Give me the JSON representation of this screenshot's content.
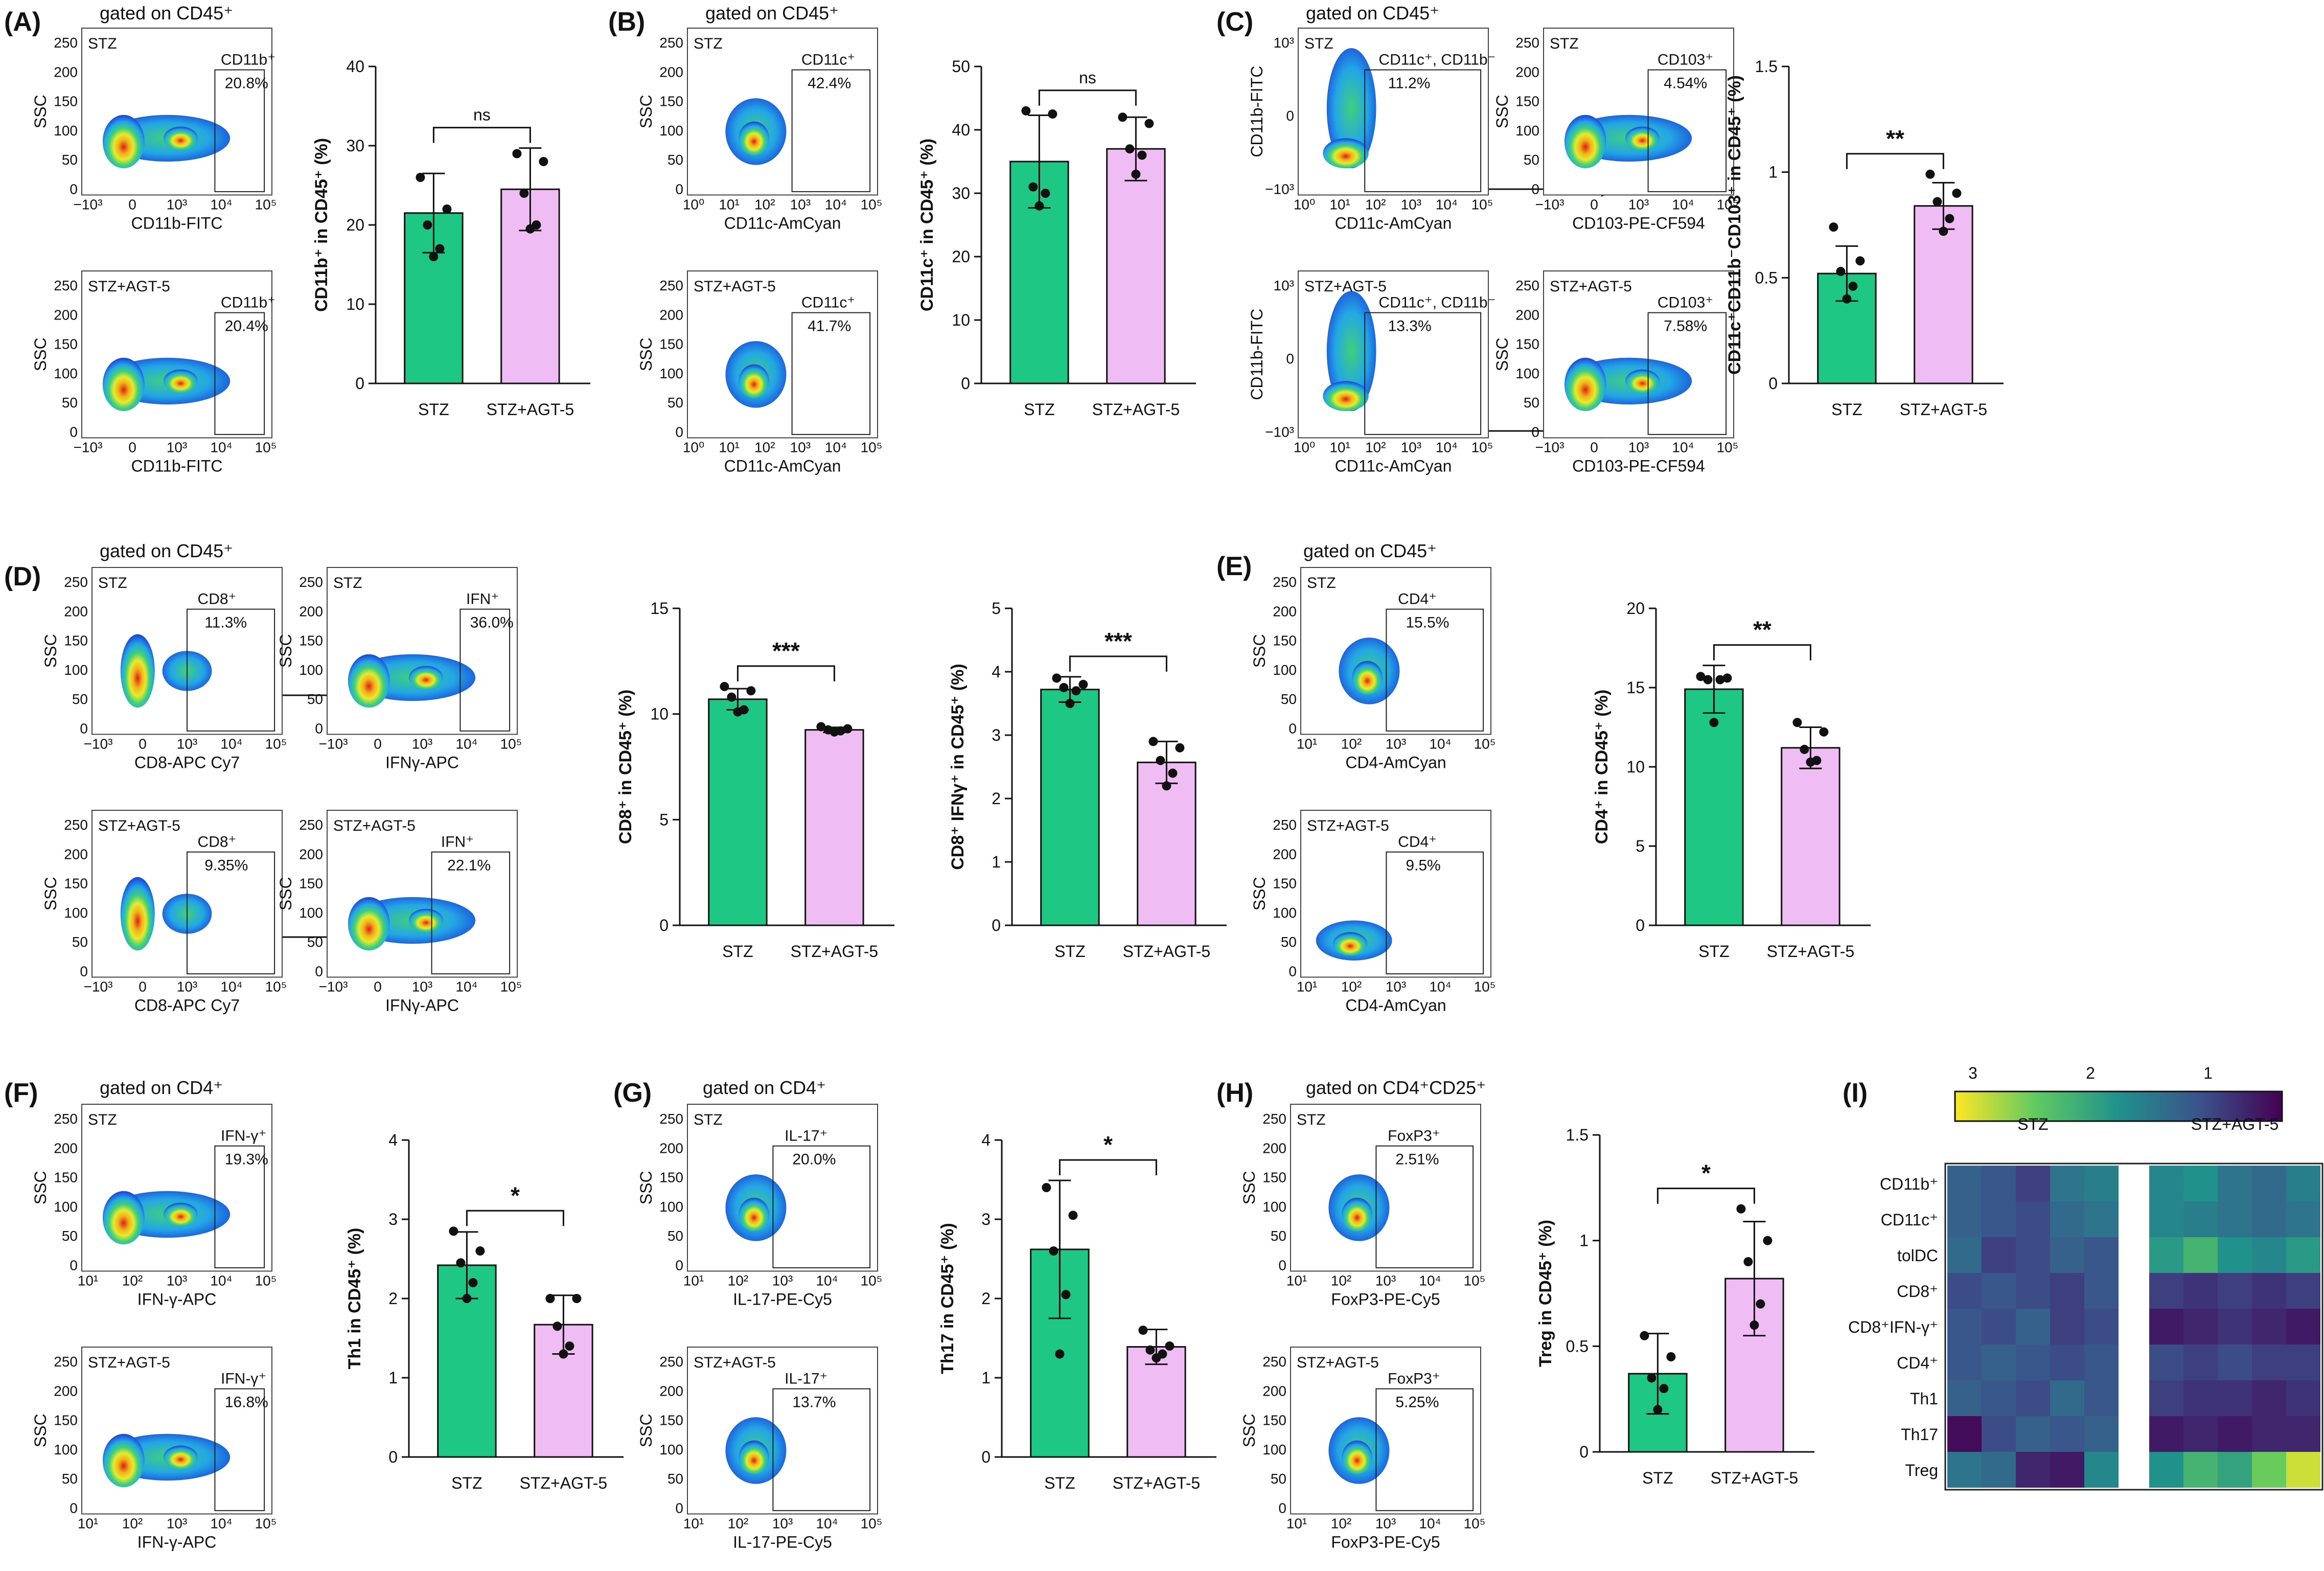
{
  "colors": {
    "stz": "#1ec783",
    "agt5": "#efbdf4",
    "agt5_dark": "#e08df2",
    "line": "#111111"
  },
  "panels": {
    "A": {
      "label": "(A)",
      "gate": "gated on CD45⁺"
    },
    "B": {
      "label": "(B)",
      "gate": "gated on CD45⁺"
    },
    "C": {
      "label": "(C)",
      "gate": "gated on CD45⁺"
    },
    "D": {
      "label": "(D)",
      "gate": "gated on CD45⁺"
    },
    "E": {
      "label": "(E)",
      "gate": "gated on CD45⁺"
    },
    "F": {
      "label": "(F)",
      "gate": "gated on CD4⁺"
    },
    "G": {
      "label": "(G)",
      "gate": "gated on CD4⁺"
    },
    "H": {
      "label": "(H)",
      "gate": "gated on CD4⁺CD25⁺"
    },
    "I": {
      "label": "(I)"
    }
  },
  "flow_plots": [
    {
      "id": "A-stz",
      "group": "STZ",
      "ylabel": "SSC",
      "xlabel": "CD11b-FITC",
      "gate": "CD11b⁺",
      "pct": "20.8%",
      "xticks": [
        "−10³",
        "0",
        "10³",
        "10⁴",
        "10⁵"
      ],
      "yticks": [
        "0",
        "50",
        "100",
        "150",
        "200",
        "250"
      ]
    },
    {
      "id": "A-agt",
      "group": "STZ+AGT-5",
      "ylabel": "SSC",
      "xlabel": "CD11b-FITC",
      "gate": "CD11b⁺",
      "pct": "20.4%",
      "xticks": [
        "−10³",
        "0",
        "10³",
        "10⁴",
        "10⁵"
      ],
      "yticks": [
        "0",
        "50",
        "100",
        "150",
        "200",
        "250"
      ]
    },
    {
      "id": "B-stz",
      "group": "STZ",
      "ylabel": "SSC",
      "xlabel": "CD11c-AmCyan",
      "gate": "CD11c⁺",
      "pct": "42.4%",
      "xticks": [
        "10⁰",
        "10¹",
        "10²",
        "10³",
        "10⁴",
        "10⁵"
      ],
      "yticks": [
        "0",
        "50",
        "100",
        "150",
        "200",
        "250"
      ]
    },
    {
      "id": "B-agt",
      "group": "STZ+AGT-5",
      "ylabel": "SSC",
      "xlabel": "CD11c-AmCyan",
      "gate": "CD11c⁺",
      "pct": "41.7%",
      "xticks": [
        "10⁰",
        "10¹",
        "10²",
        "10³",
        "10⁴",
        "10⁵"
      ],
      "yticks": [
        "0",
        "50",
        "100",
        "150",
        "200",
        "250"
      ]
    },
    {
      "id": "C-stz-1",
      "group": "STZ",
      "ylabel": "CD11b-FITC",
      "xlabel": "CD11c-AmCyan",
      "gate": "CD11c⁺, CD11b⁻",
      "pct": "11.2%",
      "xticks": [
        "10⁰",
        "10¹",
        "10²",
        "10³",
        "10⁴",
        "10⁵"
      ],
      "yticks": [
        "−10³",
        "0",
        "10³"
      ]
    },
    {
      "id": "C-stz-2",
      "group": "STZ",
      "ylabel": "SSC",
      "xlabel": "CD103-PE-CF594",
      "gate": "CD103⁺",
      "pct": "4.54%",
      "xticks": [
        "−10³",
        "0",
        "10³",
        "10⁴",
        "10⁵"
      ],
      "yticks": [
        "0",
        "50",
        "100",
        "150",
        "200",
        "250"
      ]
    },
    {
      "id": "C-agt-1",
      "group": "STZ+AGT-5",
      "ylabel": "CD11b-FITC",
      "xlabel": "CD11c-AmCyan",
      "gate": "CD11c⁺, CD11b⁻",
      "pct": "13.3%",
      "xticks": [
        "10⁰",
        "10¹",
        "10²",
        "10³",
        "10⁴",
        "10⁵"
      ],
      "yticks": [
        "−10³",
        "0",
        "10³"
      ]
    },
    {
      "id": "C-agt-2",
      "group": "STZ+AGT-5",
      "ylabel": "SSC",
      "xlabel": "CD103-PE-CF594",
      "gate": "CD103⁺",
      "pct": "7.58%",
      "xticks": [
        "−10³",
        "0",
        "10³",
        "10⁴",
        "10⁵"
      ],
      "yticks": [
        "0",
        "50",
        "100",
        "150",
        "200",
        "250"
      ]
    },
    {
      "id": "D-stz-1",
      "group": "STZ",
      "ylabel": "SSC",
      "xlabel": "CD8-APC Cy7",
      "gate": "CD8⁺",
      "pct": "11.3%",
      "xticks": [
        "−10³",
        "0",
        "10³",
        "10⁴",
        "10⁵"
      ],
      "yticks": [
        "0",
        "50",
        "100",
        "150",
        "200",
        "250"
      ]
    },
    {
      "id": "D-stz-2",
      "group": "STZ",
      "ylabel": "SSC",
      "xlabel": "IFNγ-APC",
      "gate": "IFN⁺",
      "pct": "36.0%",
      "xticks": [
        "−10³",
        "0",
        "10³",
        "10⁴",
        "10⁵"
      ],
      "yticks": [
        "0",
        "50",
        "100",
        "150",
        "200",
        "250"
      ]
    },
    {
      "id": "D-agt-1",
      "group": "STZ+AGT-5",
      "ylabel": "SSC",
      "xlabel": "CD8-APC Cy7",
      "gate": "CD8⁺",
      "pct": "9.35%",
      "xticks": [
        "−10³",
        "0",
        "10³",
        "10⁴",
        "10⁵"
      ],
      "yticks": [
        "0",
        "50",
        "100",
        "150",
        "200",
        "250"
      ]
    },
    {
      "id": "D-agt-2",
      "group": "STZ+AGT-5",
      "ylabel": "SSC",
      "xlabel": "IFNγ-APC",
      "gate": "IFN⁺",
      "pct": "22.1%",
      "xticks": [
        "−10³",
        "0",
        "10³",
        "10⁴",
        "10⁵"
      ],
      "yticks": [
        "0",
        "50",
        "100",
        "150",
        "200",
        "250"
      ]
    },
    {
      "id": "E-stz",
      "group": "STZ",
      "ylabel": "SSC",
      "xlabel": "CD4-AmCyan",
      "gate": "CD4⁺",
      "pct": "15.5%",
      "xticks": [
        "10¹",
        "10²",
        "10³",
        "10⁴",
        "10⁵"
      ],
      "yticks": [
        "0",
        "50",
        "100",
        "150",
        "200",
        "250"
      ]
    },
    {
      "id": "E-agt",
      "group": "STZ+AGT-5",
      "ylabel": "SSC",
      "xlabel": "CD4-AmCyan",
      "gate": "CD4⁺",
      "pct": "9.5%",
      "xticks": [
        "10¹",
        "10²",
        "10³",
        "10⁴",
        "10⁵"
      ],
      "yticks": [
        "0",
        "50",
        "100",
        "150",
        "200",
        "250"
      ]
    },
    {
      "id": "F-stz",
      "group": "STZ",
      "ylabel": "SSC",
      "xlabel": "IFN-γ-APC",
      "gate": "IFN-γ⁺",
      "pct": "19.3%",
      "xticks": [
        "10¹",
        "10²",
        "10³",
        "10⁴",
        "10⁵"
      ],
      "yticks": [
        "0",
        "50",
        "100",
        "150",
        "200",
        "250"
      ]
    },
    {
      "id": "F-agt",
      "group": "STZ+AGT-5",
      "ylabel": "SSC",
      "xlabel": "IFN-γ-APC",
      "gate": "IFN-γ⁺",
      "pct": "16.8%",
      "xticks": [
        "10¹",
        "10²",
        "10³",
        "10⁴",
        "10⁵"
      ],
      "yticks": [
        "0",
        "50",
        "100",
        "150",
        "200",
        "250"
      ]
    },
    {
      "id": "G-stz",
      "group": "STZ",
      "ylabel": "SSC",
      "xlabel": "IL-17-PE-Cy5",
      "gate": "IL-17⁺",
      "pct": "20.0%",
      "xticks": [
        "10¹",
        "10²",
        "10³",
        "10⁴",
        "10⁵"
      ],
      "yticks": [
        "0",
        "50",
        "100",
        "150",
        "200",
        "250"
      ]
    },
    {
      "id": "G-agt",
      "group": "STZ+AGT-5",
      "ylabel": "SSC",
      "xlabel": "IL-17-PE-Cy5",
      "gate": "IL-17⁺",
      "pct": "13.7%",
      "xticks": [
        "10¹",
        "10²",
        "10³",
        "10⁴",
        "10⁵"
      ],
      "yticks": [
        "0",
        "50",
        "100",
        "150",
        "200",
        "250"
      ]
    },
    {
      "id": "H-stz",
      "group": "STZ",
      "ylabel": "SSC",
      "xlabel": "FoxP3-PE-Cy5",
      "gate": "FoxP3⁺",
      "pct": "2.51%",
      "xticks": [
        "10¹",
        "10²",
        "10³",
        "10⁴",
        "10⁵"
      ],
      "yticks": [
        "0",
        "50",
        "100",
        "150",
        "200",
        "250"
      ]
    },
    {
      "id": "H-agt",
      "group": "STZ+AGT-5",
      "ylabel": "SSC",
      "xlabel": "FoxP3-PE-Cy5",
      "gate": "FoxP3⁺",
      "pct": "5.25%",
      "xticks": [
        "10¹",
        "10²",
        "10³",
        "10⁴",
        "10⁵"
      ],
      "yticks": [
        "0",
        "50",
        "100",
        "150",
        "200",
        "250"
      ]
    }
  ],
  "chart_data": [
    {
      "panel": "A",
      "type": "bar",
      "categories": [
        "STZ",
        "STZ+AGT-5"
      ],
      "values": [
        21.5,
        24.5
      ],
      "sd": [
        5,
        5.2
      ],
      "points": [
        [
          26,
          22,
          20,
          17,
          16
        ],
        [
          29,
          28,
          24,
          20,
          19.5
        ]
      ],
      "ylabel": "CD11b⁺ in CD45⁺ (%)",
      "ylim": [
        0,
        40
      ],
      "yticks": [
        0,
        10,
        20,
        30,
        40
      ],
      "sig": "ns"
    },
    {
      "panel": "B",
      "type": "bar",
      "categories": [
        "STZ",
        "STZ+AGT-5"
      ],
      "values": [
        35,
        37
      ],
      "sd": [
        7.3,
        5
      ],
      "points": [
        [
          43,
          42.5,
          31,
          30,
          28
        ],
        [
          42,
          41,
          37,
          36,
          33
        ]
      ],
      "ylabel": "CD11c⁺ in CD45⁺ (%)",
      "ylim": [
        0,
        50
      ],
      "yticks": [
        0,
        10,
        20,
        30,
        40,
        50
      ],
      "sig": "ns"
    },
    {
      "panel": "C",
      "type": "bar",
      "categories": [
        "STZ",
        "STZ+AGT-5"
      ],
      "values": [
        0.52,
        0.84
      ],
      "sd": [
        0.13,
        0.11
      ],
      "points": [
        [
          0.74,
          0.58,
          0.53,
          0.46,
          0.4
        ],
        [
          0.99,
          0.9,
          0.86,
          0.78,
          0.72
        ]
      ],
      "ylabel": "CD11c⁺CD11b⁻CD103⁺ in CD45⁺ (%)",
      "ylim": [
        0,
        1.5
      ],
      "yticks": [
        0,
        0.5,
        1.0,
        1.5
      ],
      "sig": "**"
    },
    {
      "panel": "D1",
      "type": "bar",
      "categories": [
        "STZ",
        "STZ+AGT-5"
      ],
      "values": [
        10.7,
        9.25
      ],
      "sd": [
        0.5,
        0.12
      ],
      "points": [
        [
          11.3,
          11.1,
          10.8,
          10.2,
          10.1
        ],
        [
          9.4,
          9.3,
          9.25,
          9.2,
          9.15
        ]
      ],
      "ylabel": "CD8⁺ in CD45⁺ (%)",
      "ylim": [
        0,
        15
      ],
      "yticks": [
        0,
        5,
        10,
        15
      ],
      "sig": "***"
    },
    {
      "panel": "D2",
      "type": "bar",
      "categories": [
        "STZ",
        "STZ+AGT-5"
      ],
      "values": [
        3.72,
        2.57
      ],
      "sd": [
        0.2,
        0.33
      ],
      "points": [
        [
          3.9,
          3.8,
          3.75,
          3.7,
          3.5
        ],
        [
          2.9,
          2.8,
          2.6,
          2.4,
          2.2
        ]
      ],
      "ylabel": "CD8⁺ IFNγ⁺ in CD45⁺ (%)",
      "ylim": [
        0,
        5
      ],
      "yticks": [
        0,
        1,
        2,
        3,
        4,
        5
      ],
      "sig": "***"
    },
    {
      "panel": "E",
      "type": "bar",
      "categories": [
        "STZ",
        "STZ+AGT-5"
      ],
      "values": [
        14.9,
        11.2
      ],
      "sd": [
        1.5,
        1.3
      ],
      "points": [
        [
          15.7,
          15.6,
          15.5,
          15.5,
          12.8
        ],
        [
          12.8,
          12.2,
          11.1,
          10.4,
          10.3
        ]
      ],
      "ylabel": "CD4⁺ in CD45⁺ (%)",
      "ylim": [
        0,
        20
      ],
      "yticks": [
        0,
        5,
        10,
        15,
        20
      ],
      "sig": "**"
    },
    {
      "panel": "F",
      "type": "bar",
      "categories": [
        "STZ",
        "STZ+AGT-5"
      ],
      "values": [
        2.42,
        1.67
      ],
      "sd": [
        0.42,
        0.37
      ],
      "points": [
        [
          2.85,
          2.6,
          2.45,
          2.2,
          2.0
        ],
        [
          2.0,
          2.0,
          1.65,
          1.4,
          1.3
        ]
      ],
      "ylabel": "Th1 in CD45⁺ (%)",
      "ylim": [
        0,
        4
      ],
      "yticks": [
        0,
        1,
        2,
        3,
        4
      ],
      "sig": "*"
    },
    {
      "panel": "G",
      "type": "bar",
      "categories": [
        "STZ",
        "STZ+AGT-5"
      ],
      "values": [
        2.62,
        1.39
      ],
      "sd": [
        0.87,
        0.22
      ],
      "points": [
        [
          3.4,
          3.05,
          2.6,
          2.05,
          1.3
        ],
        [
          1.6,
          1.4,
          1.35,
          1.3,
          1.25
        ]
      ],
      "ylabel": "Th17 in CD45⁺ (%)",
      "ylim": [
        0,
        4
      ],
      "yticks": [
        0,
        1,
        2,
        3,
        4
      ],
      "sig": "*"
    },
    {
      "panel": "H",
      "type": "bar",
      "categories": [
        "STZ",
        "STZ+AGT-5"
      ],
      "values": [
        0.37,
        0.82
      ],
      "sd": [
        0.19,
        0.27
      ],
      "points": [
        [
          0.55,
          0.45,
          0.35,
          0.3,
          0.2
        ],
        [
          1.15,
          1.0,
          0.9,
          0.7,
          0.6
        ]
      ],
      "ylabel": "Treg in CD45⁺ (%)",
      "ylim": [
        0,
        1.5
      ],
      "yticks": [
        0,
        0.5,
        1.0,
        1.5
      ],
      "sig": "*"
    },
    {
      "panel": "I",
      "type": "heatmap",
      "groups": [
        "STZ",
        "STZ+AGT-5"
      ],
      "rows": [
        "CD11b⁺",
        "CD11c⁺",
        "tolDC",
        "CD8⁺",
        "CD8⁺IFN-γ⁺",
        "CD4⁺",
        "Th1",
        "Th17",
        "Treg"
      ],
      "colorbar_ticks": [
        "3",
        "2",
        "1"
      ],
      "values": [
        [
          1.4,
          1.3,
          1.1,
          1.6,
          1.7,
          1.8,
          1.9,
          1.6,
          1.5,
          1.7
        ],
        [
          1.4,
          1.3,
          1.2,
          1.5,
          1.6,
          1.8,
          1.7,
          1.6,
          1.5,
          1.6
        ],
        [
          1.5,
          1.1,
          1.2,
          1.4,
          1.3,
          2.0,
          2.3,
          1.9,
          1.8,
          2.0
        ],
        [
          1.2,
          1.3,
          1.2,
          1.1,
          1.3,
          1.1,
          1.0,
          1.1,
          1.0,
          1.1
        ],
        [
          1.3,
          1.2,
          1.4,
          1.1,
          1.2,
          0.8,
          0.9,
          1.0,
          0.9,
          0.8
        ],
        [
          1.3,
          1.4,
          1.3,
          1.2,
          1.3,
          1.2,
          1.1,
          1.2,
          1.1,
          1.1
        ],
        [
          1.4,
          1.3,
          1.2,
          1.5,
          1.3,
          1.1,
          1.0,
          1.0,
          0.9,
          1.0
        ],
        [
          0.7,
          1.2,
          1.4,
          1.3,
          1.4,
          0.8,
          0.9,
          0.8,
          0.9,
          0.9
        ],
        [
          1.6,
          1.5,
          0.9,
          0.8,
          1.8,
          1.9,
          2.3,
          2.1,
          2.6,
          3.0
        ]
      ]
    }
  ]
}
